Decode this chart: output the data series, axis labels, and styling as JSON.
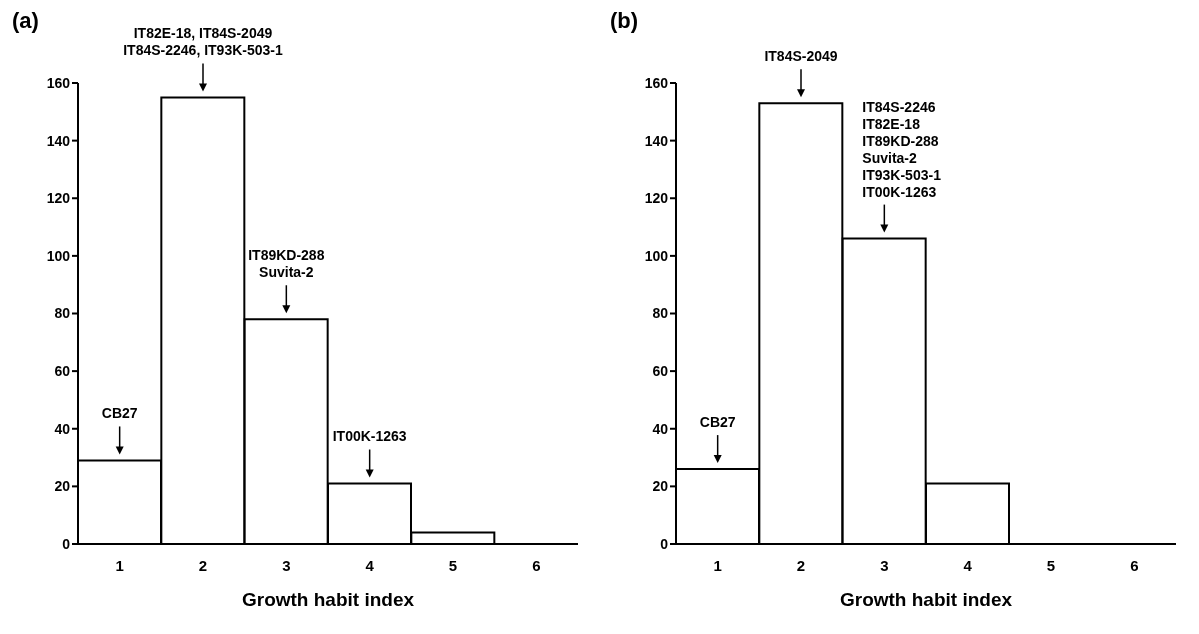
{
  "chart_data": [
    {
      "type": "bar",
      "title": "(a)",
      "xlabel": "Growth habit index",
      "categories": [
        "1",
        "2",
        "3",
        "4",
        "5",
        "6"
      ],
      "values": [
        29,
        155,
        78,
        21,
        4,
        0
      ],
      "color": "#ffffff",
      "ylim": [
        0,
        160
      ],
      "yticks": [
        0,
        20,
        40,
        60,
        80,
        100,
        120,
        140,
        160
      ],
      "grid": false,
      "legend": false,
      "annotations": [
        {
          "text": "CB27",
          "x": "1",
          "y": 29
        },
        {
          "text": "IT82E-18, IT84S-2049\nIT84S-2246, IT93K-503-1",
          "x": "2",
          "y": 155
        },
        {
          "text": "IT89KD-288\nSuvita-2",
          "x": "3",
          "y": 78
        },
        {
          "text": "IT00K-1263",
          "x": "4",
          "y": 21
        }
      ]
    },
    {
      "type": "bar",
      "title": "(b)",
      "xlabel": "Growth habit index",
      "categories": [
        "1",
        "2",
        "3",
        "4",
        "5",
        "6"
      ],
      "values": [
        26,
        153,
        106,
        21,
        0,
        0
      ],
      "color": "#ffffff",
      "ylim": [
        0,
        160
      ],
      "yticks": [
        0,
        20,
        40,
        60,
        80,
        100,
        120,
        140,
        160
      ],
      "grid": false,
      "legend": false,
      "annotations": [
        {
          "text": "CB27",
          "x": "1",
          "y": 26
        },
        {
          "text": "IT84S-2049",
          "x": "2",
          "y": 153
        },
        {
          "text": "IT84S-2246\nIT82E-18\nIT89KD-288\nSuvita-2\nIT93K-503-1\nIT00K-1263",
          "x": "3",
          "y": 106
        }
      ]
    }
  ]
}
